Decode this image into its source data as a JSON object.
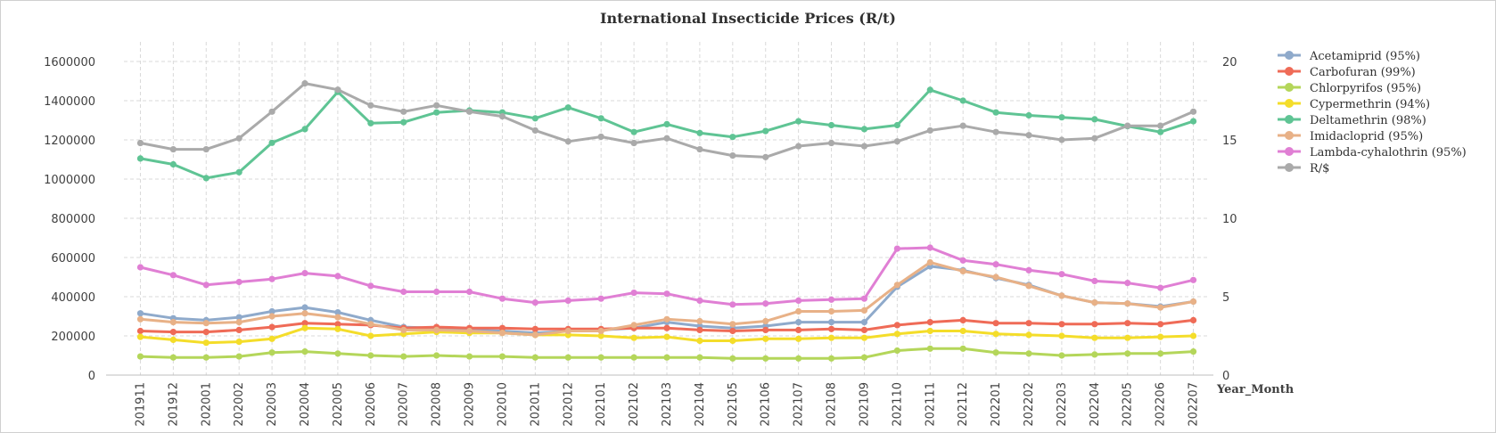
{
  "chart_data": {
    "type": "line",
    "title": "International Insecticide Prices (R/t)",
    "xlabel": "Year_Month",
    "ylabel": "",
    "ylim": [
      0,
      1600000
    ],
    "y2lim": [
      0,
      20
    ],
    "yticks": [
      0,
      200000,
      400000,
      600000,
      800000,
      1000000,
      1200000,
      1400000,
      1600000
    ],
    "y2ticks": [
      0,
      5,
      10,
      15,
      20
    ],
    "grid": true,
    "legend_position": "right",
    "categories": [
      "201911",
      "201912",
      "202001",
      "202002",
      "202003",
      "202004",
      "202005",
      "202006",
      "202007",
      "202008",
      "202009",
      "202010",
      "202011",
      "202012",
      "202101",
      "202102",
      "202103",
      "202104",
      "202105",
      "202106",
      "202107",
      "202108",
      "202109",
      "202110",
      "202111",
      "202112",
      "202201",
      "202202",
      "202203",
      "202204",
      "202205",
      "202206",
      "202207"
    ],
    "series": [
      {
        "name": "Acetamiprid (95%)",
        "color": "#8faacb",
        "axis": "left",
        "values": [
          315000,
          290000,
          280000,
          295000,
          325000,
          345000,
          320000,
          280000,
          245000,
          240000,
          230000,
          225000,
          215000,
          225000,
          230000,
          240000,
          270000,
          250000,
          240000,
          250000,
          270000,
          270000,
          270000,
          450000,
          555000,
          535000,
          495000,
          460000,
          405000,
          370000,
          365000,
          350000,
          375000
        ]
      },
      {
        "name": "Carbofuran (99%)",
        "color": "#ef6b57",
        "axis": "left",
        "values": [
          225000,
          220000,
          220000,
          230000,
          245000,
          265000,
          260000,
          255000,
          240000,
          245000,
          240000,
          240000,
          235000,
          235000,
          235000,
          240000,
          240000,
          230000,
          225000,
          230000,
          230000,
          235000,
          230000,
          255000,
          270000,
          280000,
          265000,
          265000,
          260000,
          260000,
          265000,
          260000,
          280000
        ]
      },
      {
        "name": "Chlorpyrifos (95%)",
        "color": "#b4d65a",
        "axis": "left",
        "values": [
          95000,
          90000,
          90000,
          95000,
          115000,
          120000,
          110000,
          100000,
          95000,
          100000,
          95000,
          95000,
          90000,
          90000,
          90000,
          90000,
          90000,
          90000,
          85000,
          85000,
          85000,
          85000,
          90000,
          125000,
          135000,
          135000,
          115000,
          110000,
          100000,
          105000,
          110000,
          110000,
          120000
        ]
      },
      {
        "name": "Cypermethrin (94%)",
        "color": "#f4dd2a",
        "axis": "left",
        "values": [
          195000,
          180000,
          165000,
          170000,
          185000,
          240000,
          235000,
          200000,
          210000,
          220000,
          215000,
          215000,
          205000,
          205000,
          200000,
          190000,
          195000,
          175000,
          175000,
          185000,
          185000,
          190000,
          190000,
          210000,
          225000,
          225000,
          210000,
          205000,
          200000,
          190000,
          190000,
          195000,
          200000
        ]
      },
      {
        "name": "Deltamethrin (98%)",
        "color": "#5fc494",
        "axis": "left",
        "values": [
          1105000,
          1075000,
          1005000,
          1035000,
          1185000,
          1255000,
          1445000,
          1285000,
          1290000,
          1340000,
          1350000,
          1340000,
          1310000,
          1365000,
          1310000,
          1240000,
          1280000,
          1235000,
          1215000,
          1245000,
          1295000,
          1275000,
          1255000,
          1275000,
          1455000,
          1400000,
          1340000,
          1325000,
          1315000,
          1305000,
          1270000,
          1240000,
          1295000
        ]
      },
      {
        "name": "Imidacloprid (95%)",
        "color": "#e8b187",
        "axis": "left",
        "values": [
          285000,
          270000,
          265000,
          270000,
          300000,
          315000,
          295000,
          260000,
          230000,
          230000,
          225000,
          215000,
          205000,
          225000,
          225000,
          255000,
          285000,
          275000,
          260000,
          275000,
          325000,
          325000,
          330000,
          460000,
          575000,
          530000,
          500000,
          455000,
          405000,
          370000,
          365000,
          345000,
          375000
        ]
      },
      {
        "name": "Lambda-cyhalothrin (95%)",
        "color": "#e07fd4",
        "axis": "left",
        "values": [
          550000,
          510000,
          460000,
          475000,
          490000,
          520000,
          505000,
          455000,
          425000,
          425000,
          425000,
          390000,
          370000,
          380000,
          390000,
          420000,
          415000,
          380000,
          360000,
          365000,
          380000,
          385000,
          390000,
          645000,
          650000,
          585000,
          565000,
          535000,
          515000,
          480000,
          470000,
          445000,
          485000
        ]
      },
      {
        "name": "R/$",
        "color": "#aaaaaa",
        "axis": "right",
        "values": [
          14.8,
          14.4,
          14.4,
          15.1,
          16.8,
          18.6,
          18.2,
          17.2,
          16.8,
          17.2,
          16.8,
          16.5,
          15.6,
          14.9,
          15.2,
          14.8,
          15.1,
          14.4,
          14.0,
          13.9,
          14.6,
          14.8,
          14.6,
          14.9,
          15.6,
          15.9,
          15.5,
          15.3,
          15.0,
          15.1,
          15.9,
          15.9,
          16.8
        ]
      }
    ]
  }
}
